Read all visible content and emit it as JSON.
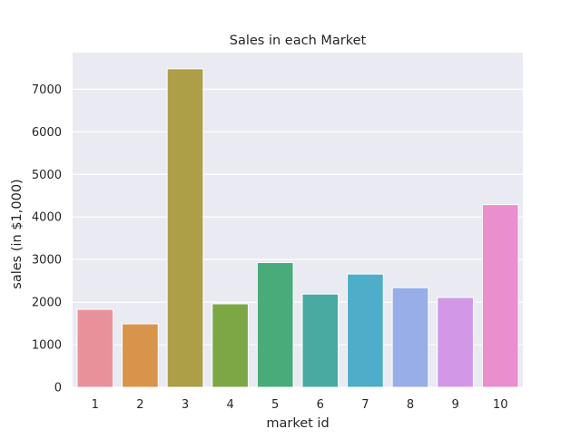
{
  "chart_data": {
    "type": "bar",
    "title": "Sales in each Market",
    "xlabel": "market id",
    "ylabel": "sales (in $1,000)",
    "categories": [
      "1",
      "2",
      "3",
      "4",
      "5",
      "6",
      "7",
      "8",
      "9",
      "10"
    ],
    "values": [
      1830,
      1490,
      7480,
      1960,
      2930,
      2190,
      2660,
      2340,
      2110,
      4290
    ],
    "ylim": [
      0,
      7860
    ],
    "yticks": [
      0,
      1000,
      2000,
      3000,
      4000,
      5000,
      6000,
      7000
    ],
    "grid": true,
    "colors": [
      "#e8919a",
      "#d9944b",
      "#ad9e48",
      "#7ba845",
      "#4aab7a",
      "#48aaa0",
      "#4eaec9",
      "#98aee8",
      "#d198e8",
      "#ea8fce"
    ],
    "background": "#eaeaf2"
  }
}
